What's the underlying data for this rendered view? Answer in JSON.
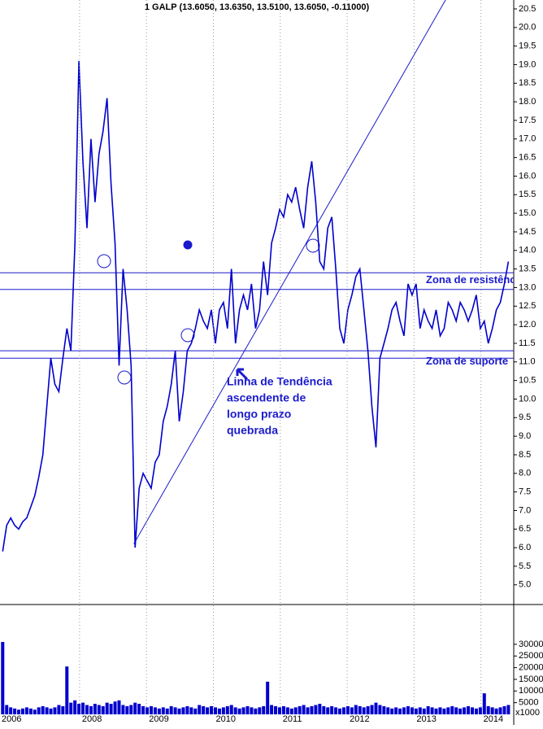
{
  "chart_data": {
    "type": "line",
    "title": "1 GALP (13.6050, 13.6350, 13.5100, 13.6050, -0.11000)",
    "color": "#0000cc",
    "x": [
      2006.85,
      2006.91,
      2006.97,
      2007.03,
      2007.09,
      2007.15,
      2007.21,
      2007.27,
      2007.33,
      2007.39,
      2007.45,
      2007.51,
      2007.57,
      2007.63,
      2007.69,
      2007.75,
      2007.81,
      2007.87,
      2007.93,
      2007.99,
      2008.05,
      2008.11,
      2008.17,
      2008.23,
      2008.29,
      2008.35,
      2008.41,
      2008.47,
      2008.53,
      2008.59,
      2008.65,
      2008.71,
      2008.77,
      2008.83,
      2008.89,
      2008.95,
      2009.01,
      2009.07,
      2009.13,
      2009.19,
      2009.25,
      2009.31,
      2009.37,
      2009.43,
      2009.49,
      2009.55,
      2009.61,
      2009.67,
      2009.73,
      2009.79,
      2009.85,
      2009.91,
      2009.97,
      2010.03,
      2010.09,
      2010.15,
      2010.21,
      2010.27,
      2010.33,
      2010.39,
      2010.45,
      2010.51,
      2010.57,
      2010.63,
      2010.69,
      2010.75,
      2010.81,
      2010.87,
      2010.93,
      2010.99,
      2011.05,
      2011.11,
      2011.17,
      2011.23,
      2011.29,
      2011.35,
      2011.41,
      2011.47,
      2011.53,
      2011.59,
      2011.65,
      2011.71,
      2011.77,
      2011.83,
      2011.89,
      2011.95,
      2012.01,
      2012.07,
      2012.13,
      2012.19,
      2012.25,
      2012.31,
      2012.37,
      2012.43,
      2012.49,
      2012.55,
      2012.61,
      2012.67,
      2012.73,
      2012.79,
      2012.85,
      2012.91,
      2012.97,
      2013.03,
      2013.09,
      2013.15,
      2013.21,
      2013.27,
      2013.33,
      2013.39,
      2013.45,
      2013.51,
      2013.57,
      2013.63,
      2013.69,
      2013.75,
      2013.81,
      2013.87,
      2013.93,
      2013.99,
      2014.05,
      2014.11,
      2014.17,
      2014.23,
      2014.29,
      2014.35,
      2014.41
    ],
    "values": [
      5.9,
      6.6,
      6.8,
      6.6,
      6.5,
      6.7,
      6.8,
      7.1,
      7.4,
      7.9,
      8.5,
      9.8,
      11.1,
      10.4,
      10.2,
      11.1,
      11.9,
      11.3,
      14.2,
      19.1,
      16.4,
      14.6,
      17.0,
      15.3,
      16.6,
      17.2,
      18.1,
      15.8,
      14.2,
      10.9,
      13.5,
      12.4,
      10.9,
      6.0,
      7.6,
      8.0,
      7.8,
      7.6,
      8.3,
      8.5,
      9.4,
      9.8,
      10.4,
      11.3,
      9.4,
      10.2,
      11.3,
      11.5,
      11.9,
      12.4,
      12.1,
      11.9,
      12.4,
      11.5,
      12.4,
      12.6,
      11.9,
      13.5,
      11.5,
      12.4,
      12.8,
      12.4,
      13.1,
      11.9,
      12.4,
      13.7,
      12.8,
      14.2,
      14.6,
      15.1,
      14.9,
      15.5,
      15.3,
      15.7,
      15.1,
      14.6,
      15.7,
      16.4,
      15.3,
      13.7,
      13.5,
      14.6,
      14.9,
      13.5,
      11.9,
      11.5,
      12.4,
      12.8,
      13.3,
      13.5,
      12.4,
      11.3,
      9.8,
      8.7,
      11.1,
      11.5,
      11.9,
      12.4,
      12.6,
      12.1,
      11.7,
      13.1,
      12.8,
      13.1,
      11.9,
      12.4,
      12.1,
      11.9,
      12.4,
      11.7,
      11.9,
      12.6,
      12.4,
      12.1,
      12.6,
      12.4,
      12.1,
      12.4,
      12.8,
      11.9,
      12.1,
      11.5,
      11.9,
      12.4,
      12.6,
      13.1,
      13.7
    ],
    "volume": [
      31000,
      4000,
      3000,
      2500,
      2000,
      2500,
      3000,
      2500,
      2000,
      3000,
      3500,
      3000,
      2500,
      3000,
      4000,
      3500,
      20500,
      5000,
      6000,
      4500,
      5000,
      4000,
      3500,
      4500,
      4000,
      3500,
      5000,
      4500,
      5500,
      6000,
      4000,
      3500,
      4000,
      5000,
      4500,
      3500,
      3000,
      3500,
      3000,
      2500,
      3000,
      2500,
      3500,
      3000,
      2500,
      3000,
      3500,
      3000,
      2500,
      4000,
      3500,
      3000,
      3500,
      3000,
      2500,
      3000,
      3500,
      4000,
      3000,
      2500,
      3000,
      3500,
      3000,
      2500,
      3000,
      3500,
      14000,
      4000,
      3500,
      3000,
      3500,
      3000,
      2500,
      3000,
      3500,
      4000,
      3000,
      3500,
      4000,
      4500,
      3500,
      3000,
      3500,
      3000,
      2500,
      3000,
      3500,
      3000,
      4000,
      3500,
      3000,
      3500,
      4000,
      5000,
      4000,
      3500,
      3000,
      2500,
      3000,
      2500,
      3000,
      3500,
      3000,
      2500,
      3000,
      2500,
      3500,
      3000,
      2500,
      3000,
      2500,
      3000,
      3500,
      3000,
      2500,
      3000,
      3500,
      3000,
      2500,
      3000,
      9000,
      3500,
      3000,
      2500,
      3000,
      3500,
      4000
    ],
    "xlim": [
      2006.81,
      2014.49
    ],
    "xticks": [
      2006,
      2008,
      2009,
      2010,
      2011,
      2012,
      2013,
      2014
    ],
    "ylim": [
      4.47,
      20.74
    ],
    "yticks": [
      {
        "value": 5,
        "label": "5.0"
      },
      {
        "value": 5.5,
        "label": "5.5"
      },
      {
        "value": 6,
        "label": "6.0"
      },
      {
        "value": 6.5,
        "label": "6.5"
      },
      {
        "value": 7,
        "label": "7.0"
      },
      {
        "value": 7.5,
        "label": "7.5"
      },
      {
        "value": 8,
        "label": "8.0"
      },
      {
        "value": 8.5,
        "label": "8.5"
      },
      {
        "value": 9,
        "label": "9.0"
      },
      {
        "value": 9.5,
        "label": "9.5"
      },
      {
        "value": 10,
        "label": "10.0"
      },
      {
        "value": 10.5,
        "label": "10.5"
      },
      {
        "value": 11,
        "label": "11.0"
      },
      {
        "value": 11.5,
        "label": "11.5"
      },
      {
        "value": 12,
        "label": "12.0"
      },
      {
        "value": 12.5,
        "label": "12.5"
      },
      {
        "value": 13,
        "label": "13.0"
      },
      {
        "value": 13.5,
        "label": "13.5"
      },
      {
        "value": 14,
        "label": "14.0"
      },
      {
        "value": 14.5,
        "label": "14.5"
      },
      {
        "value": 15,
        "label": "15.0"
      },
      {
        "value": 15.5,
        "label": "15.5"
      },
      {
        "value": 16,
        "label": "16.0"
      },
      {
        "value": 16.5,
        "label": "16.5"
      },
      {
        "value": 17,
        "label": "17.0"
      },
      {
        "value": 17.5,
        "label": "17.5"
      },
      {
        "value": 18,
        "label": "18.0"
      },
      {
        "value": 18.5,
        "label": "18.5"
      },
      {
        "value": 19,
        "label": "19.0"
      },
      {
        "value": 19.5,
        "label": "19.5"
      },
      {
        "value": 20,
        "label": "20.0"
      },
      {
        "value": 20.5,
        "label": "20.5"
      }
    ],
    "volume_ylim": [
      0,
      46000
    ],
    "volume_yticks": [
      5000,
      10000,
      15000,
      20000,
      25000,
      30000
    ],
    "volume_unit": "x1000",
    "hlines": [
      13.4,
      12.95,
      11.3,
      11.1
    ],
    "trendline": {
      "x": [
        2008.81,
        2013.47
      ],
      "y": [
        6.1,
        20.74
      ]
    },
    "zones": [
      {
        "text": "Zona de resistência",
        "y": 13.2
      },
      {
        "text": "Zona de suporte",
        "y": 11.0
      }
    ],
    "annotation": [
      "Linha de Tendência",
      "ascendente de",
      "longo prazo",
      "quebrada"
    ]
  }
}
